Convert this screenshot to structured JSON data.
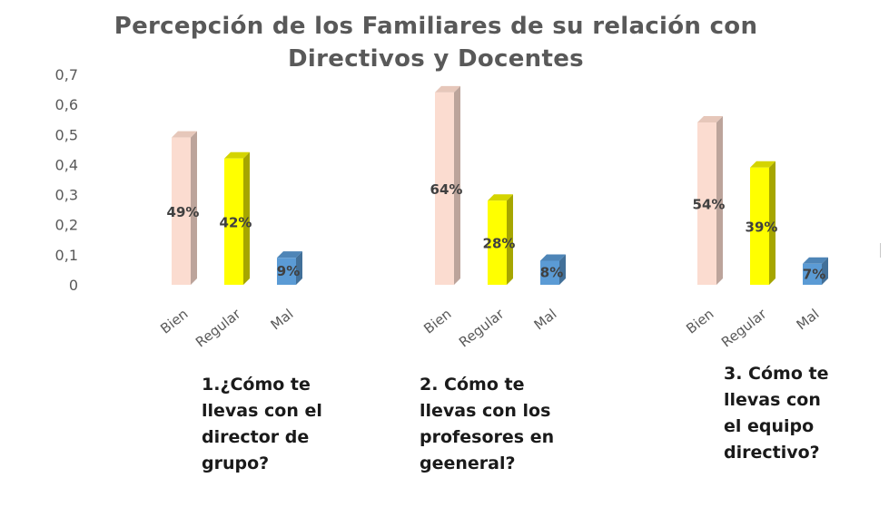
{
  "title_lines": [
    "Percepción de los Familiares de su relación con",
    "Directivos y Docentes"
  ],
  "captions": [
    [
      "1.¿Cómo te",
      "llevas con el",
      "director de",
      "grupo?"
    ],
    [
      "2. Cómo te",
      "llevas con los",
      "profesores en",
      "geeneral?"
    ],
    [
      "3. Cómo te",
      "llevas con",
      "el equipo",
      "directivo?"
    ]
  ],
  "colors": {
    "Bien": "#fbdcd0",
    "Regular": "#ffff00",
    "Mal": "#5b9bd5",
    "text": "#595959"
  },
  "chart_data": {
    "type": "bar",
    "style": "3d-column",
    "title": "Percepción de los Familiares de su relación con Directivos y Docentes",
    "ylim": [
      0,
      0.7
    ],
    "yticks": [
      "0",
      "0,1",
      "0,2",
      "0,3",
      "0,4",
      "0,5",
      "0,6",
      "0,7"
    ],
    "grid": false,
    "legend": "none",
    "groups": [
      {
        "label": "1.¿Cómo te llevas con el director de grupo?",
        "categories": [
          "Bien",
          "Regular",
          "Mal"
        ],
        "values": [
          0.49,
          0.42,
          0.09
        ],
        "data_labels": [
          "49%",
          "42%",
          "9%"
        ]
      },
      {
        "label": "2. Cómo te llevas con los profesores en geeneral?",
        "categories": [
          "Bien",
          "Regular",
          "Mal"
        ],
        "values": [
          0.64,
          0.28,
          0.08
        ],
        "data_labels": [
          "64%",
          "28%",
          "8%"
        ]
      },
      {
        "label": "3. Cómo te llevas con el equipo directivo?",
        "categories": [
          "Bien",
          "Regular",
          "Mal"
        ],
        "values": [
          0.54,
          0.39,
          0.07
        ],
        "data_labels": [
          "54%",
          "39%",
          "7%"
        ]
      }
    ]
  }
}
